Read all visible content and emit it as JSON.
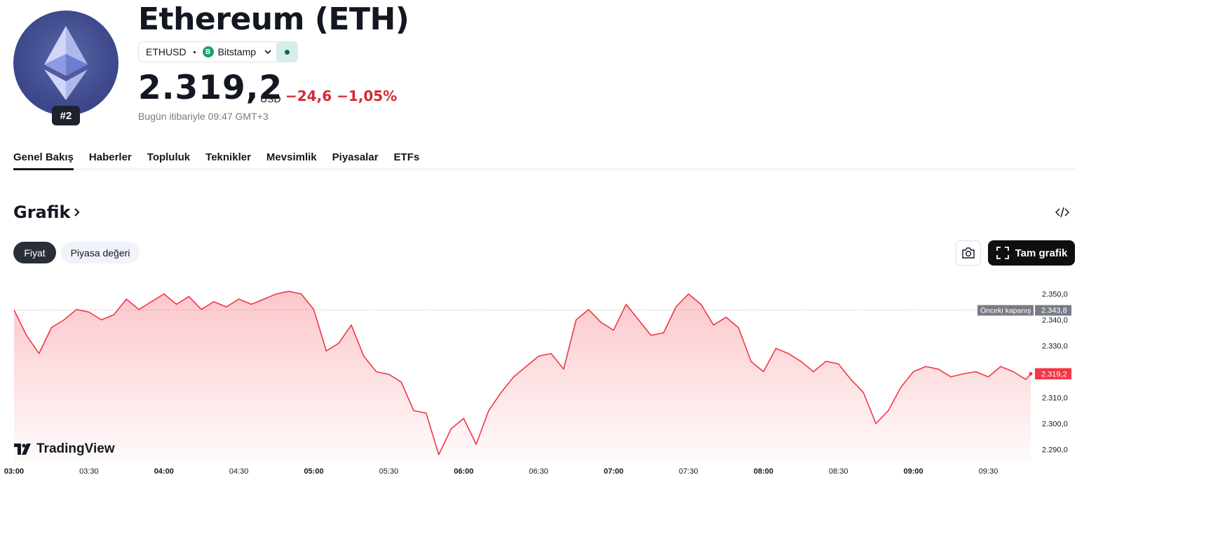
{
  "header": {
    "title": "Ethereum (ETH)",
    "rank": "#2",
    "symbol": "ETHUSD",
    "exchange": "Bitstamp",
    "exchange_icon": "B",
    "price": "2.319,2",
    "currency": "USD",
    "change": "−24,6 −1,05%",
    "as_of": "Bugün itibariyle 09:47 GMT+3"
  },
  "tabs": [
    {
      "label": "Genel Bakış",
      "active": true
    },
    {
      "label": "Haberler",
      "active": false
    },
    {
      "label": "Topluluk",
      "active": false
    },
    {
      "label": "Teknikler",
      "active": false
    },
    {
      "label": "Mevsimlik",
      "active": false
    },
    {
      "label": "Piyasalar",
      "active": false
    },
    {
      "label": "ETFs",
      "active": false
    }
  ],
  "section": {
    "title": "Grafik",
    "chips": [
      "Fiyat",
      "Piyasa değeri"
    ],
    "fullchart_label": "Tam grafik"
  },
  "colors": {
    "line": "#f23645",
    "negative": "#d42a35",
    "dark": "#131722",
    "status": "#0b6b5b"
  },
  "chart_data": {
    "type": "area",
    "series": [
      {
        "x": [
          "03:00",
          "03:05",
          "03:10",
          "03:15",
          "03:20",
          "03:25",
          "03:30",
          "03:35",
          "03:40",
          "03:45",
          "03:50",
          "03:55",
          "04:00",
          "04:05",
          "04:10",
          "04:15",
          "04:20",
          "04:25",
          "04:30",
          "04:35",
          "04:40",
          "04:45",
          "04:50",
          "04:55",
          "05:00",
          "05:05",
          "05:10",
          "05:15",
          "05:20",
          "05:25",
          "05:30",
          "05:35",
          "05:40",
          "05:45",
          "05:50",
          "05:55",
          "06:00",
          "06:05",
          "06:10",
          "06:15",
          "06:20",
          "06:25",
          "06:30",
          "06:35",
          "06:40",
          "06:45",
          "06:50",
          "06:55",
          "07:00",
          "07:05",
          "07:10",
          "07:15",
          "07:20",
          "07:25",
          "07:30",
          "07:35",
          "07:40",
          "07:45",
          "07:50",
          "07:55",
          "08:00",
          "08:05",
          "08:10",
          "08:15",
          "08:20",
          "08:25",
          "08:30",
          "08:35",
          "08:40",
          "08:45",
          "08:50",
          "08:55",
          "09:00",
          "09:05",
          "09:10",
          "09:15",
          "09:20",
          "09:25",
          "09:30",
          "09:35",
          "09:40",
          "09:45",
          "09:47"
        ],
        "values": [
          2343.8,
          2334,
          2327,
          2337,
          2340,
          2344,
          2343,
          2340,
          2342,
          2348,
          2344,
          2347,
          2350,
          2346,
          2349,
          2344,
          2347,
          2345,
          2348,
          2346,
          2348,
          2350,
          2351,
          2350,
          2344,
          2328,
          2331,
          2338,
          2326,
          2320,
          2319,
          2316,
          2305,
          2304,
          2288,
          2298,
          2302,
          2292,
          2305,
          2312,
          2318,
          2322,
          2326,
          2327,
          2321,
          2340,
          2344,
          2339,
          2336,
          2346,
          2340,
          2334,
          2335,
          2345,
          2350,
          2346,
          2338,
          2341,
          2337,
          2324,
          2320,
          2329,
          2327,
          2324,
          2320,
          2324,
          2323,
          2317,
          2312,
          2300,
          2305,
          2314,
          2320,
          2322,
          2321,
          2318,
          2319.2,
          2320,
          2318,
          2322,
          2320,
          2317,
          2319.2
        ],
        "name": ""
      }
    ],
    "xlabel": "",
    "ylabel": "",
    "x_ticks": [
      "03:00",
      "03:30",
      "04:00",
      "04:30",
      "05:00",
      "05:30",
      "06:00",
      "06:30",
      "07:00",
      "07:30",
      "08:00",
      "08:30",
      "09:00",
      "09:30"
    ],
    "y_ticks": [
      "2.350,0",
      "2.340,0",
      "2.330,0",
      "2.320,0",
      "2.310,0",
      "2.300,0",
      "2.290,0"
    ],
    "ylim": [
      2285,
      2355
    ],
    "prev_close": 2343.8,
    "prev_close_label": "Önceki kapanış",
    "prev_close_value": "2.343,8",
    "last_value_label": "2.319,2",
    "grid": false,
    "branding": "TradingView"
  }
}
